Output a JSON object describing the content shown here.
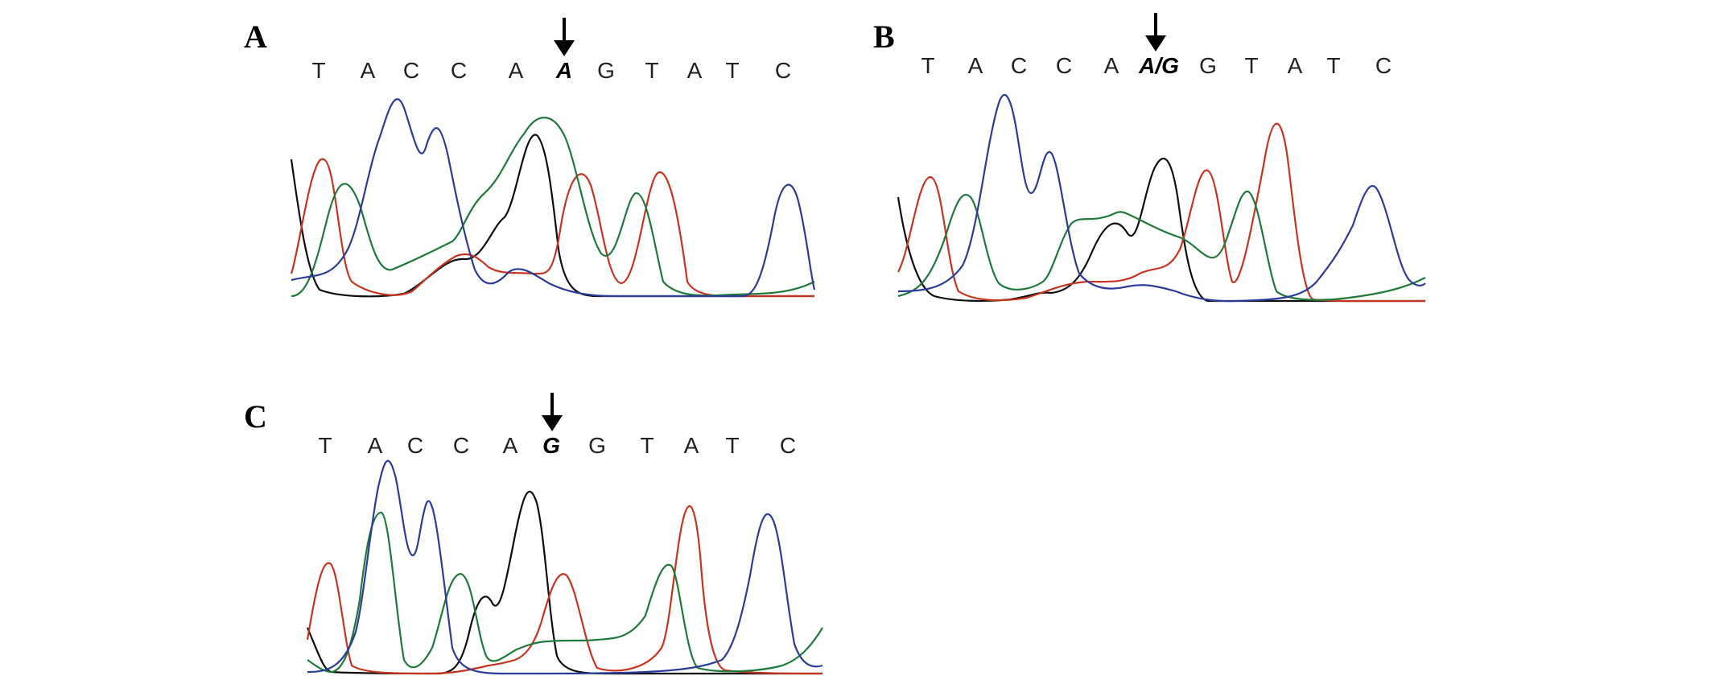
{
  "colors": {
    "A": "#1f7a3a",
    "C": "#2b3c9b",
    "G": "#0d0d0d",
    "T": "#c7341f"
  },
  "panels": [
    {
      "id": "A",
      "label": "A",
      "sequence": [
        "T",
        "A",
        "C",
        "C",
        "A",
        "A",
        "G",
        "T",
        "A",
        "T",
        "C"
      ],
      "variant_index": 5,
      "variant_text": "A"
    },
    {
      "id": "B",
      "label": "B",
      "sequence": [
        "T",
        "A",
        "C",
        "C",
        "A",
        "A/G",
        "G",
        "T",
        "A",
        "T",
        "C"
      ],
      "variant_index": 5,
      "variant_text": "A/G"
    },
    {
      "id": "C",
      "label": "C",
      "sequence": [
        "T",
        "A",
        "C",
        "C",
        "A",
        "G",
        "G",
        "T",
        "A",
        "T",
        "C"
      ],
      "variant_index": 5,
      "variant_text": "G"
    }
  ],
  "icons": {
    "variant_marker": "down-arrow-icon"
  }
}
